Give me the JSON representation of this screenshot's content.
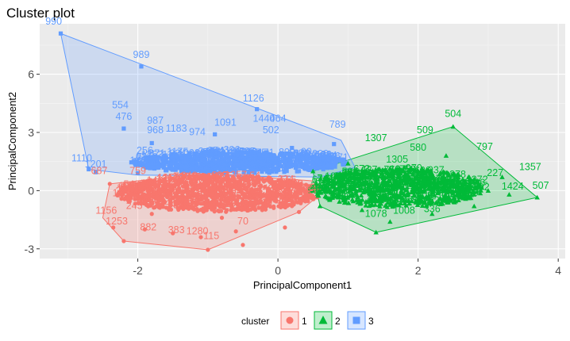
{
  "chart_data": {
    "type": "scatter",
    "title": "Cluster plot",
    "xlabel": "PrincipalComponent1",
    "ylabel": "PrincipalComponent2",
    "xlim": [
      -3.4,
      4.1
    ],
    "ylim": [
      -3.5,
      8.6
    ],
    "xticks": [
      "-2",
      "0",
      "2",
      "4"
    ],
    "xtick_values": [
      -2,
      0,
      2,
      4
    ],
    "yticks": [
      "-3",
      "0",
      "3",
      "6"
    ],
    "ytick_values": [
      -3,
      0,
      3,
      6
    ],
    "grid": true,
    "legend": {
      "title": "cluster",
      "position": "bottom",
      "entries": [
        "1",
        "2",
        "3"
      ]
    },
    "series": [
      {
        "name": "1",
        "color": "#F8766D",
        "shape": "circle",
        "hull": [
          [
            -2.4,
            0.35
          ],
          [
            -1.0,
            0.9
          ],
          [
            0.5,
            0.5
          ],
          [
            0.6,
            -0.2
          ],
          [
            0.3,
            -1.1
          ],
          [
            -1.0,
            -3.05
          ],
          [
            -2.2,
            -2.6
          ],
          [
            -2.5,
            -1.4
          ]
        ],
        "points": [
          [
            -2.35,
            -1.9
          ],
          [
            -2.2,
            -2.6
          ],
          [
            -1.0,
            -3.05
          ],
          [
            -0.5,
            -2.8
          ],
          [
            0.1,
            -1.9
          ],
          [
            -2.1,
            -0.4
          ],
          [
            -1.8,
            -1.2
          ],
          [
            -1.5,
            -2.2
          ],
          [
            -1.6,
            0.2
          ],
          [
            -1.2,
            -0.6
          ],
          [
            -0.8,
            -1.4
          ],
          [
            -0.4,
            -0.3
          ],
          [
            0.2,
            -0.8
          ],
          [
            0.4,
            0.3
          ],
          [
            -1.4,
            0.6
          ],
          [
            -0.2,
            0.5
          ],
          [
            -2.4,
            0.35
          ],
          [
            -2.0,
            0.1
          ],
          [
            -1.1,
            -2.4
          ],
          [
            -0.6,
            -2.1
          ],
          [
            0.3,
            -1.1
          ],
          [
            -1.9,
            -2.0
          ],
          [
            -0.9,
            0.1
          ],
          [
            0.0,
            -0.2
          ]
        ],
        "labels": [
          {
            "text": "1156",
            "x": -2.45,
            "y": -1.2
          },
          {
            "text": "1253",
            "x": -2.3,
            "y": -1.75
          },
          {
            "text": "882",
            "x": -1.85,
            "y": -2.05
          },
          {
            "text": "245",
            "x": -2.05,
            "y": -0.95
          },
          {
            "text": "115",
            "x": -0.95,
            "y": -2.5
          },
          {
            "text": "1280",
            "x": -1.15,
            "y": -2.25
          },
          {
            "text": "383",
            "x": -1.45,
            "y": -2.2
          },
          {
            "text": "70",
            "x": -0.5,
            "y": -1.75
          },
          {
            "text": "759",
            "x": -2.0,
            "y": 0.85
          },
          {
            "text": "687",
            "x": -2.55,
            "y": 0.85
          }
        ]
      },
      {
        "name": "2",
        "color": "#00BA38",
        "shape": "triangle",
        "hull": [
          [
            0.5,
            1.0
          ],
          [
            2.5,
            3.3
          ],
          [
            3.7,
            -0.35
          ],
          [
            1.4,
            -2.15
          ],
          [
            0.6,
            -0.8
          ]
        ],
        "points": [
          [
            2.5,
            3.3
          ],
          [
            3.7,
            -0.35
          ],
          [
            1.4,
            -2.15
          ],
          [
            0.6,
            -0.8
          ],
          [
            0.5,
            1.0
          ],
          [
            1.0,
            0.5
          ],
          [
            1.5,
            0.0
          ],
          [
            2.0,
            -0.5
          ],
          [
            2.5,
            0.5
          ],
          [
            3.0,
            0.0
          ],
          [
            1.2,
            -1.0
          ],
          [
            1.8,
            1.2
          ],
          [
            2.2,
            -1.2
          ],
          [
            2.8,
            -0.8
          ],
          [
            3.2,
            0.7
          ],
          [
            1.0,
            1.4
          ],
          [
            1.6,
            -1.6
          ],
          [
            2.4,
            1.8
          ],
          [
            0.8,
            -0.3
          ],
          [
            3.3,
            -0.2
          ]
        ],
        "labels": [
          {
            "text": "504",
            "x": 2.5,
            "y": 3.8
          },
          {
            "text": "509",
            "x": 2.1,
            "y": 2.95
          },
          {
            "text": "797",
            "x": 2.95,
            "y": 2.1
          },
          {
            "text": "1357",
            "x": 3.6,
            "y": 1.05
          },
          {
            "text": "507",
            "x": 3.75,
            "y": 0.1
          },
          {
            "text": "1424",
            "x": 3.35,
            "y": 0.05
          },
          {
            "text": "227",
            "x": 3.1,
            "y": 0.75
          },
          {
            "text": "1307",
            "x": 1.4,
            "y": 2.55
          },
          {
            "text": "1305",
            "x": 1.7,
            "y": 1.45
          },
          {
            "text": "580",
            "x": 2.0,
            "y": 2.05
          },
          {
            "text": "1078",
            "x": 1.4,
            "y": -1.35
          },
          {
            "text": "1008",
            "x": 1.8,
            "y": -1.2
          },
          {
            "text": "336",
            "x": 2.2,
            "y": -1.1
          }
        ]
      },
      {
        "name": "3",
        "color": "#619CFF",
        "shape": "square",
        "hull": [
          [
            -3.1,
            8.1
          ],
          [
            0.9,
            2.6
          ],
          [
            1.1,
            1.2
          ],
          [
            0.6,
            0.7
          ],
          [
            -2.0,
            0.8
          ],
          [
            -2.7,
            1.1
          ]
        ],
        "points": [
          [
            -3.1,
            8.1
          ],
          [
            -1.95,
            6.4
          ],
          [
            -0.3,
            4.2
          ],
          [
            -2.2,
            3.2
          ],
          [
            -1.8,
            2.45
          ],
          [
            -2.7,
            1.1
          ],
          [
            -2.6,
            0.95
          ],
          [
            -1.0,
            2.0
          ],
          [
            0.0,
            1.5
          ],
          [
            0.8,
            2.4
          ],
          [
            -1.5,
            1.4
          ],
          [
            -0.5,
            1.2
          ],
          [
            0.3,
            1.0
          ],
          [
            -2.0,
            0.9
          ],
          [
            -1.2,
            1.1
          ],
          [
            0.9,
            1.6
          ],
          [
            -0.9,
            2.9
          ],
          [
            0.2,
            2.2
          ]
        ],
        "labels": [
          {
            "text": "990",
            "x": -3.2,
            "y": 8.55
          },
          {
            "text": "989",
            "x": -1.95,
            "y": 6.85
          },
          {
            "text": "554",
            "x": -2.25,
            "y": 4.25
          },
          {
            "text": "476",
            "x": -2.2,
            "y": 3.65
          },
          {
            "text": "1126",
            "x": -0.35,
            "y": 4.6
          },
          {
            "text": "1440",
            "x": -0.2,
            "y": 3.55
          },
          {
            "text": "464",
            "x": 0.0,
            "y": 3.55
          },
          {
            "text": "1091",
            "x": -0.75,
            "y": 3.35
          },
          {
            "text": "987",
            "x": -1.75,
            "y": 3.45
          },
          {
            "text": "968",
            "x": -1.75,
            "y": 2.95
          },
          {
            "text": "1183",
            "x": -1.45,
            "y": 3.05
          },
          {
            "text": "974",
            "x": -1.15,
            "y": 2.85
          },
          {
            "text": "502",
            "x": -0.1,
            "y": 2.95
          },
          {
            "text": "789",
            "x": 0.85,
            "y": 3.25
          },
          {
            "text": "1110",
            "x": -2.8,
            "y": 1.5
          },
          {
            "text": "1201",
            "x": -2.6,
            "y": 1.2
          },
          {
            "text": "256",
            "x": -1.9,
            "y": 1.9
          }
        ]
      }
    ]
  }
}
